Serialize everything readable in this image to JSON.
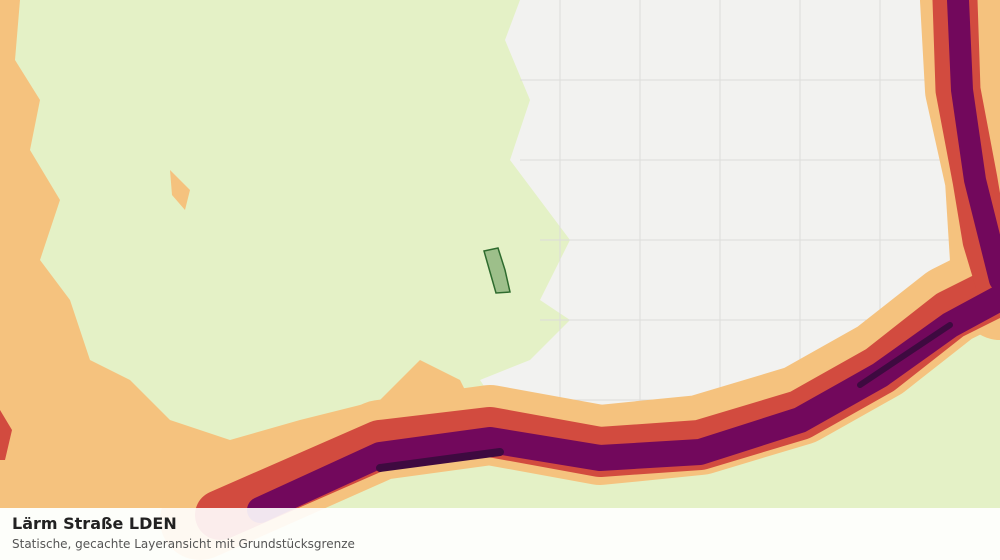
{
  "header": {
    "title": "Lärm Straße LDEN",
    "subtitle": "Statische, gecachte Layeransicht mit Grundstücksgrenze"
  }
}
